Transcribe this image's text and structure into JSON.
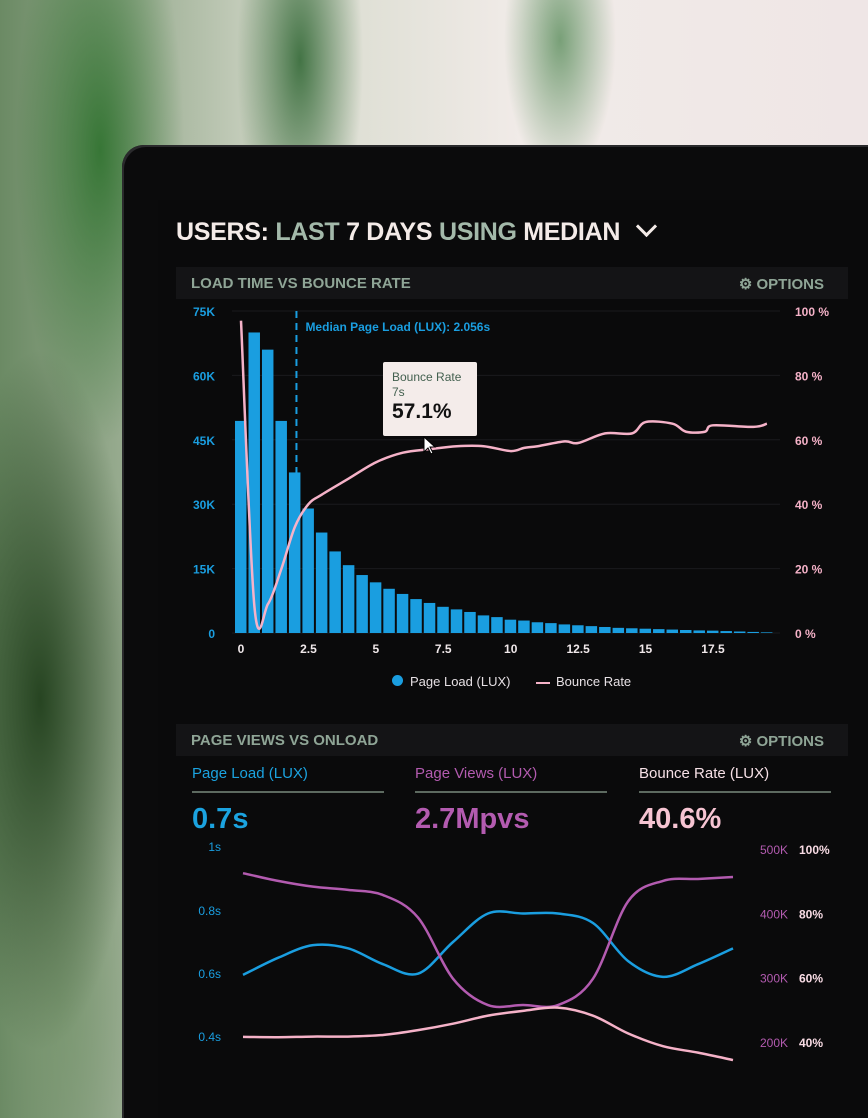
{
  "header": {
    "title_parts": [
      "USERS:",
      "LAST",
      "7 DAYS",
      "USING",
      "MEDIAN"
    ]
  },
  "panel1": {
    "title": "LOAD TIME VS BOUNCE RATE",
    "options_label": "OPTIONS",
    "tooltip": {
      "label": "Bounce Rate",
      "x": "7s",
      "value": "57.1%"
    },
    "legend": [
      "Page Load (LUX)",
      "Bounce Rate"
    ]
  },
  "panel2": {
    "title": "PAGE VIEWS VS ONLOAD",
    "options_label": "OPTIONS",
    "kpis": [
      {
        "label": "Page Load (LUX)",
        "value": "0.7s",
        "color": "#1ba3e0"
      },
      {
        "label": "Page Views (LUX)",
        "value": "2.7Mpvs",
        "color": "#b35bb0"
      },
      {
        "label": "Bounce Rate (LUX)",
        "value": "40.6%",
        "color": "#f6c4d2"
      }
    ]
  },
  "colors": {
    "blue": "#1a9ee0",
    "pink": "#f5b2c8",
    "purple": "#b35bb0",
    "panel_title": "#8fa596"
  },
  "chart_data": [
    {
      "type": "bar+line",
      "title": "LOAD TIME VS BOUNCE RATE",
      "x_ticks": [
        "0",
        "2.5",
        "5",
        "7.5",
        "10",
        "12.5",
        "15",
        "17.5"
      ],
      "xlim": [
        0,
        20
      ],
      "y_left_ticks": [
        "0",
        "15K",
        "30K",
        "45K",
        "60K",
        "75K"
      ],
      "y_left_lim": [
        0,
        75000
      ],
      "y_right_ticks": [
        "0 %",
        "20 %",
        "40 %",
        "60 %",
        "80 %",
        "100 %"
      ],
      "y_right_lim": [
        0,
        100
      ],
      "annotation": {
        "x": 2.056,
        "label": "Median Page Load (LUX): 2.056s"
      },
      "bars": {
        "name": "Page Load (LUX)",
        "bin_width": 0.5,
        "values": [
          49400,
          70000,
          66000,
          49400,
          37400,
          29000,
          23400,
          19000,
          15800,
          13500,
          11800,
          10300,
          9100,
          7900,
          7000,
          6100,
          5500,
          4900,
          4100,
          3700,
          3100,
          2900,
          2500,
          2300,
          2000,
          1800,
          1600,
          1400,
          1200,
          1100,
          1000,
          900,
          800,
          700,
          600,
          550,
          450,
          350,
          250,
          150
        ]
      },
      "line": {
        "name": "Bounce Rate",
        "points": [
          [
            0,
            97
          ],
          [
            0.5,
            8
          ],
          [
            1,
            9
          ],
          [
            1.5,
            20
          ],
          [
            2,
            33
          ],
          [
            2.5,
            40
          ],
          [
            3,
            43
          ],
          [
            4,
            48
          ],
          [
            5,
            53
          ],
          [
            6,
            56
          ],
          [
            7,
            57.1
          ],
          [
            8,
            58
          ],
          [
            9,
            58
          ],
          [
            10,
            56.5
          ],
          [
            10.5,
            57.5
          ],
          [
            11,
            58
          ],
          [
            12,
            59.5
          ],
          [
            12.5,
            59
          ],
          [
            13.5,
            62
          ],
          [
            14.5,
            62
          ],
          [
            15,
            65.5
          ],
          [
            16,
            65
          ],
          [
            16.5,
            62.5
          ],
          [
            17.2,
            62.5
          ],
          [
            17.5,
            64.5
          ],
          [
            19,
            64
          ],
          [
            19.5,
            65
          ]
        ]
      },
      "legend_position": "bottom"
    },
    {
      "type": "line",
      "title": "PAGE VIEWS VS ONLOAD",
      "y_left_ticks": [
        "1s",
        "0.8s",
        "0.6s",
        "0.4s"
      ],
      "y_left_lim": [
        0.4,
        1.0
      ],
      "y_right1_ticks": [
        "500K",
        "400K",
        "300K",
        "200K"
      ],
      "y_right1_lim": [
        200000,
        500000
      ],
      "y_right2_ticks": [
        "100%",
        "80%",
        "60%",
        "40%"
      ],
      "y_right2_lim": [
        40,
        100
      ],
      "series": [
        {
          "name": "Page Load (LUX)",
          "axis": "left",
          "values": [
            0.596,
            0.65,
            0.69,
            0.68,
            0.63,
            0.6,
            0.7,
            0.79,
            0.79,
            0.79,
            0.76,
            0.64,
            0.59,
            0.63,
            0.68
          ]
        },
        {
          "name": "Page Views (LUX)",
          "axis": "right1",
          "values": [
            464000,
            452000,
            443000,
            438000,
            430000,
            395000,
            300000,
            259000,
            259000,
            259000,
            300000,
            420000,
            452000,
            455000,
            458000
          ]
        },
        {
          "name": "Bounce Rate (LUX)",
          "axis": "right2",
          "values": [
            41.9,
            41.8,
            42,
            42,
            42.5,
            44,
            46,
            48.5,
            50,
            51,
            48.5,
            43,
            39,
            37,
            34.7
          ]
        }
      ]
    }
  ]
}
